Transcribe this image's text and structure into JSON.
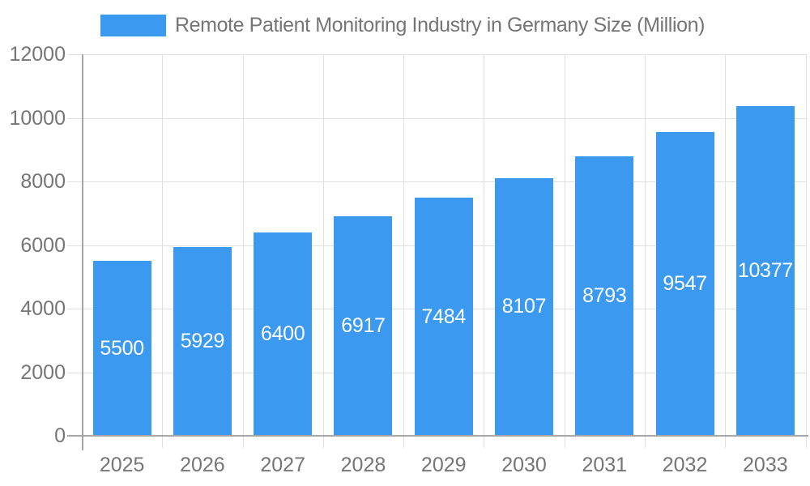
{
  "chart_data": {
    "type": "bar",
    "title": "Remote Patient Monitoring Industry in Germany Size (Million)",
    "legend": {
      "label": "Remote Patient Monitoring Industry in Germany Size (Million)",
      "position": "top"
    },
    "categories": [
      "2025",
      "2026",
      "2027",
      "2028",
      "2029",
      "2030",
      "2031",
      "2032",
      "2033"
    ],
    "series": [
      {
        "name": "Remote Patient Monitoring Industry in Germany Size (Million)",
        "values": [
          5500,
          5929,
          6400,
          6917,
          7484,
          8107,
          8793,
          9547,
          10377
        ]
      }
    ],
    "value_labels_shown": true,
    "xlabel": "",
    "ylabel": "",
    "ylim": [
      0,
      12000
    ],
    "ytick_interval": 2000,
    "ytick_labels": [
      "0",
      "2000",
      "4000",
      "6000",
      "8000",
      "10000",
      "12000"
    ],
    "grid": "horizontal and vertical gridlines on",
    "colors": {
      "bar": "#3B9AF0",
      "bar_value_label": "#FFFFFF",
      "axis_text": "#757575",
      "gridline": "#E0E0E0",
      "axis_line": "#A6A6A6"
    }
  }
}
